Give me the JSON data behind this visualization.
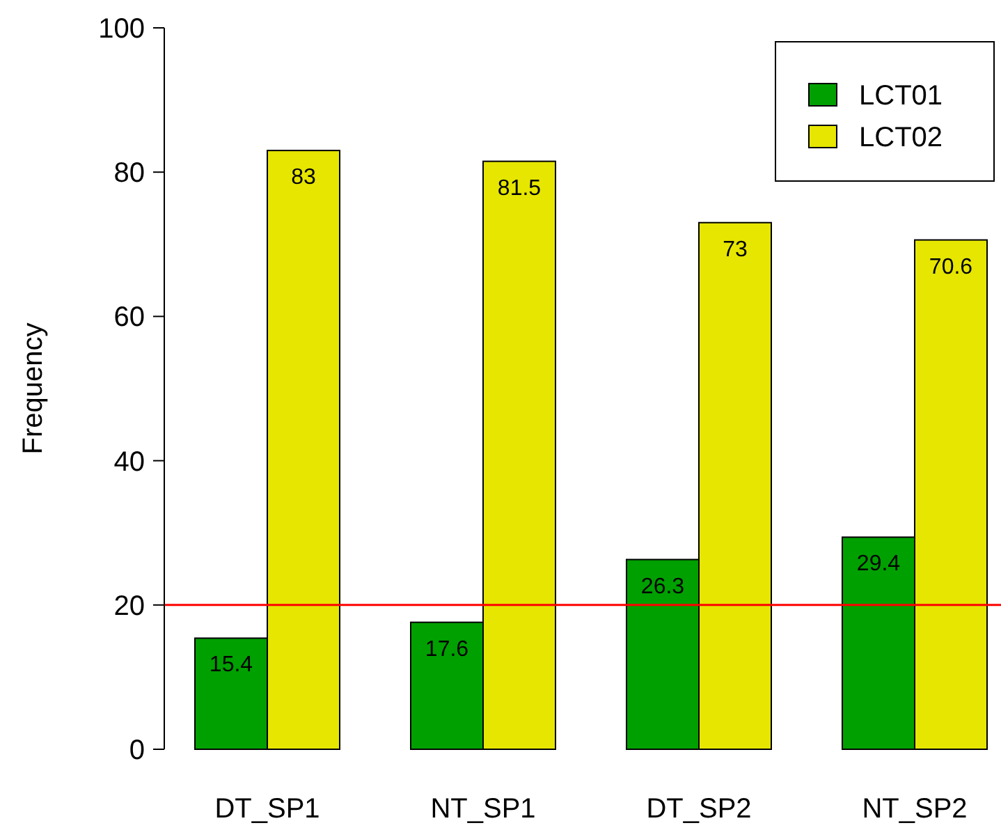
{
  "chart_data": {
    "type": "bar",
    "ylabel": "Frequency",
    "categories": [
      "DT_SP1",
      "NT_SP1",
      "DT_SP2",
      "NT_SP2"
    ],
    "series": [
      {
        "name": "LCT01",
        "color": "#00a000",
        "values": [
          15.4,
          17.6,
          26.3,
          29.4
        ]
      },
      {
        "name": "LCT02",
        "color": "#e6e600",
        "values": [
          83,
          81.5,
          73,
          70.6
        ]
      }
    ],
    "ylim": [
      0,
      100
    ],
    "yticks": [
      0,
      20,
      40,
      60,
      80,
      100
    ],
    "data_labels": true,
    "legend": "top right",
    "ref_lines": [
      {
        "axis": "y",
        "value": 20,
        "color": "#ff0000"
      }
    ]
  }
}
